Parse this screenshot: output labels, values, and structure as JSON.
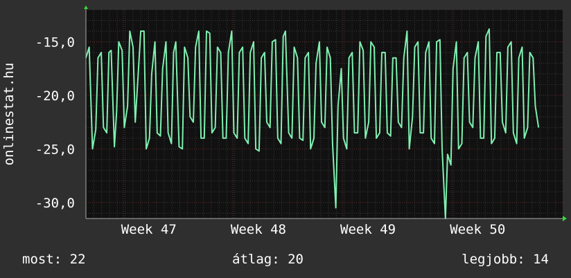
{
  "chart_data": {
    "type": "line",
    "ylabel": "onlinestat.hu",
    "xlabel": "",
    "title": "",
    "ylim": [
      -31.5,
      -12.0
    ],
    "y_ticks": [
      {
        "value": -15,
        "label": "-15,0"
      },
      {
        "value": -20,
        "label": "-20,0"
      },
      {
        "value": -25,
        "label": "-25,0"
      },
      {
        "value": -30,
        "label": "-30,0"
      }
    ],
    "x_ticks": [
      {
        "value": 1.04,
        "label": "Week 47"
      },
      {
        "value": 2.04,
        "label": "Week 48"
      },
      {
        "value": 3.04,
        "label": "Week 49"
      },
      {
        "value": 4.04,
        "label": "Week 50"
      }
    ],
    "x_range": [
      0.7,
      5.05
    ],
    "series": [
      {
        "name": "",
        "color": "#7ff0b0",
        "points": [
          [
            0.7,
            -16.5
          ],
          [
            0.73,
            -15.5
          ],
          [
            0.76,
            -25.0
          ],
          [
            0.79,
            -23.2
          ],
          [
            0.81,
            -16.5
          ],
          [
            0.84,
            -16.0
          ],
          [
            0.86,
            -23.0
          ],
          [
            0.89,
            -23.5
          ],
          [
            0.91,
            -16.0
          ],
          [
            0.93,
            -15.8
          ],
          [
            0.96,
            -24.8
          ],
          [
            0.98,
            -21.5
          ],
          [
            1.0,
            -15.0
          ],
          [
            1.03,
            -15.8
          ],
          [
            1.05,
            -23.0
          ],
          [
            1.08,
            -21.0
          ],
          [
            1.1,
            -14.0
          ],
          [
            1.13,
            -15.5
          ],
          [
            1.15,
            -22.5
          ],
          [
            1.18,
            -17.5
          ],
          [
            1.2,
            -14.0
          ],
          [
            1.23,
            -14.0
          ],
          [
            1.25,
            -25.0
          ],
          [
            1.28,
            -24.0
          ],
          [
            1.3,
            -18.0
          ],
          [
            1.33,
            -15.0
          ],
          [
            1.35,
            -23.5
          ],
          [
            1.38,
            -23.8
          ],
          [
            1.4,
            -17.5
          ],
          [
            1.43,
            -15.0
          ],
          [
            1.45,
            -23.5
          ],
          [
            1.48,
            -24.5
          ],
          [
            1.5,
            -16.0
          ],
          [
            1.52,
            -15.0
          ],
          [
            1.55,
            -24.8
          ],
          [
            1.58,
            -25.0
          ],
          [
            1.6,
            -15.5
          ],
          [
            1.63,
            -16.5
          ],
          [
            1.65,
            -22.0
          ],
          [
            1.68,
            -22.5
          ],
          [
            1.7,
            -15.5
          ],
          [
            1.73,
            -14.0
          ],
          [
            1.75,
            -24.0
          ],
          [
            1.78,
            -24.0
          ],
          [
            1.8,
            -14.0
          ],
          [
            1.83,
            -14.2
          ],
          [
            1.85,
            -23.5
          ],
          [
            1.88,
            -23.0
          ],
          [
            1.9,
            -15.5
          ],
          [
            1.93,
            -16.0
          ],
          [
            1.95,
            -24.0
          ],
          [
            1.98,
            -24.0
          ],
          [
            2.0,
            -16.0
          ],
          [
            2.03,
            -14.0
          ],
          [
            2.05,
            -23.5
          ],
          [
            2.08,
            -24.0
          ],
          [
            2.1,
            -16.0
          ],
          [
            2.13,
            -15.5
          ],
          [
            2.15,
            -24.0
          ],
          [
            2.18,
            -24.5
          ],
          [
            2.2,
            -16.0
          ],
          [
            2.23,
            -15.0
          ],
          [
            2.25,
            -25.0
          ],
          [
            2.28,
            -25.2
          ],
          [
            2.3,
            -16.5
          ],
          [
            2.33,
            -16.0
          ],
          [
            2.35,
            -22.5
          ],
          [
            2.38,
            -23.0
          ],
          [
            2.4,
            -15.0
          ],
          [
            2.43,
            -14.8
          ],
          [
            2.45,
            -24.0
          ],
          [
            2.48,
            -24.5
          ],
          [
            2.5,
            -14.5
          ],
          [
            2.52,
            -14.0
          ],
          [
            2.55,
            -23.5
          ],
          [
            2.58,
            -24.0
          ],
          [
            2.6,
            -15.5
          ],
          [
            2.63,
            -16.5
          ],
          [
            2.65,
            -24.0
          ],
          [
            2.68,
            -24.2
          ],
          [
            2.7,
            -16.5
          ],
          [
            2.73,
            -16.0
          ],
          [
            2.75,
            -25.0
          ],
          [
            2.78,
            -24.0
          ],
          [
            2.8,
            -17.0
          ],
          [
            2.83,
            -15.0
          ],
          [
            2.85,
            -22.5
          ],
          [
            2.88,
            -23.0
          ],
          [
            2.9,
            -15.5
          ],
          [
            2.93,
            -16.5
          ],
          [
            2.95,
            -24.5
          ],
          [
            2.98,
            -30.5
          ],
          [
            3.0,
            -21.0
          ],
          [
            3.03,
            -17.5
          ],
          [
            3.05,
            -24.0
          ],
          [
            3.08,
            -25.0
          ],
          [
            3.1,
            -16.5
          ],
          [
            3.13,
            -16.0
          ],
          [
            3.15,
            -23.5
          ],
          [
            3.18,
            -23.5
          ],
          [
            3.2,
            -15.0
          ],
          [
            3.23,
            -15.8
          ],
          [
            3.25,
            -24.0
          ],
          [
            3.28,
            -22.5
          ],
          [
            3.3,
            -15.0
          ],
          [
            3.33,
            -15.5
          ],
          [
            3.35,
            -24.0
          ],
          [
            3.38,
            -23.5
          ],
          [
            3.4,
            -16.0
          ],
          [
            3.43,
            -16.0
          ],
          [
            3.45,
            -23.5
          ],
          [
            3.48,
            -23.8
          ],
          [
            3.5,
            -16.5
          ],
          [
            3.53,
            -16.5
          ],
          [
            3.55,
            -22.5
          ],
          [
            3.58,
            -23.0
          ],
          [
            3.6,
            -16.5
          ],
          [
            3.63,
            -14.0
          ],
          [
            3.65,
            -25.0
          ],
          [
            3.68,
            -22.0
          ],
          [
            3.7,
            -15.5
          ],
          [
            3.73,
            -15.0
          ],
          [
            3.75,
            -23.5
          ],
          [
            3.78,
            -23.5
          ],
          [
            3.8,
            -16.0
          ],
          [
            3.83,
            -15.0
          ],
          [
            3.85,
            -24.0
          ],
          [
            3.88,
            -24.5
          ],
          [
            3.9,
            -15.0
          ],
          [
            3.93,
            -14.8
          ],
          [
            3.95,
            -25.0
          ],
          [
            3.98,
            -31.5
          ],
          [
            4.0,
            -25.5
          ],
          [
            4.03,
            -26.5
          ],
          [
            4.05,
            -17.5
          ],
          [
            4.08,
            -15.0
          ],
          [
            4.1,
            -25.0
          ],
          [
            4.13,
            -24.5
          ],
          [
            4.15,
            -16.5
          ],
          [
            4.18,
            -16.0
          ],
          [
            4.2,
            -22.5
          ],
          [
            4.23,
            -23.0
          ],
          [
            4.25,
            -16.5
          ],
          [
            4.28,
            -15.0
          ],
          [
            4.3,
            -24.0
          ],
          [
            4.33,
            -24.0
          ],
          [
            4.35,
            -14.5
          ],
          [
            4.38,
            -13.8
          ],
          [
            4.4,
            -24.5
          ],
          [
            4.43,
            -24.0
          ],
          [
            4.45,
            -16.0
          ],
          [
            4.48,
            -16.0
          ],
          [
            4.5,
            -22.5
          ],
          [
            4.53,
            -23.5
          ],
          [
            4.55,
            -15.5
          ],
          [
            4.58,
            -15.0
          ],
          [
            4.6,
            -23.5
          ],
          [
            4.63,
            -24.5
          ],
          [
            4.65,
            -16.5
          ],
          [
            4.68,
            -15.5
          ],
          [
            4.7,
            -24.0
          ],
          [
            4.73,
            -23.0
          ],
          [
            4.75,
            -16.0
          ],
          [
            4.78,
            -16.5
          ],
          [
            4.8,
            -21.0
          ],
          [
            4.83,
            -23.0
          ]
        ]
      }
    ]
  },
  "footer": {
    "most": "most: 22",
    "atlag": "átlag: 20",
    "legjobb": "legjobb: 14"
  }
}
